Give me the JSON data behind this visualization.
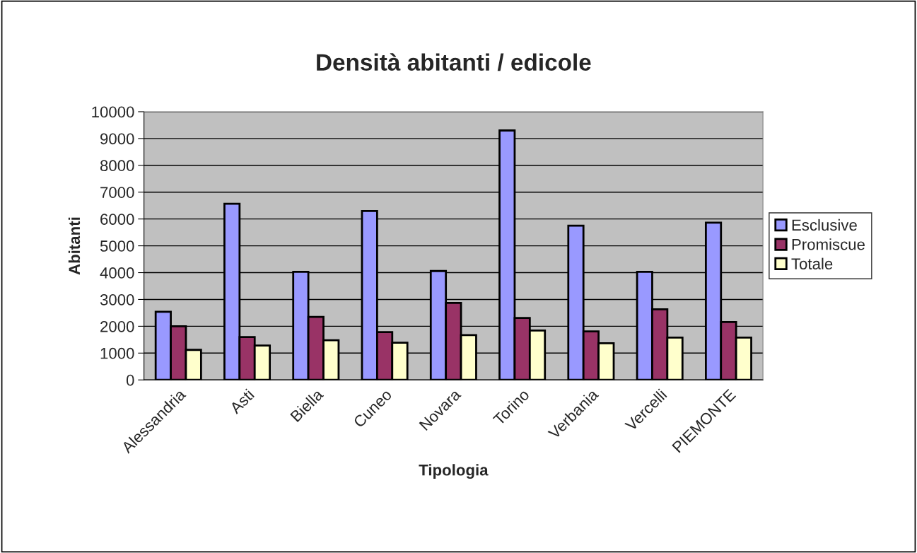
{
  "chart_data": {
    "type": "bar",
    "title": "Densità abitanti / edicole",
    "xlabel": "Tipologia",
    "ylabel": "Abitanti",
    "categories": [
      "Alessandria",
      "Asti",
      "Biella",
      "Cuneo",
      "Novara",
      "Torino",
      "Verbania",
      "Vercelli",
      "PIEMONTE"
    ],
    "series": [
      {
        "name": "Esclusive",
        "color": "#9999ff",
        "values": [
          2540,
          6570,
          4030,
          6300,
          4060,
          9300,
          5750,
          4030,
          5860
        ]
      },
      {
        "name": "Promiscue",
        "color": "#993366",
        "values": [
          2000,
          1600,
          2350,
          1780,
          2870,
          2310,
          1810,
          2630,
          2160
        ]
      },
      {
        "name": "Totale",
        "color": "#ffffcc",
        "values": [
          1120,
          1280,
          1480,
          1390,
          1670,
          1840,
          1370,
          1580,
          1580
        ]
      }
    ],
    "ylim": [
      0,
      10000
    ],
    "yticks": [
      0,
      1000,
      2000,
      3000,
      4000,
      5000,
      6000,
      7000,
      8000,
      9000,
      10000
    ],
    "grid": "y",
    "legend": "right"
  }
}
